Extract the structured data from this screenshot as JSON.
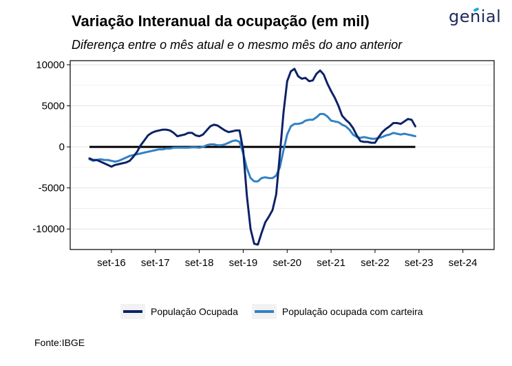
{
  "logo": {
    "text": "genial"
  },
  "chart_data": {
    "type": "line",
    "title": "Variação Interanual da ocupação (em mil)",
    "subtitle": "Diferença entre o mês atual e o mesmo mês do ano anterior",
    "xlabel": "",
    "ylabel": "",
    "ylim": [
      -12500,
      10500
    ],
    "yticks": [
      10000,
      5000,
      0,
      -5000,
      -10000
    ],
    "ytick_labels": [
      "10000",
      "5000",
      "0",
      "-5000",
      "-10000"
    ],
    "xticks": [
      "set-16",
      "set-17",
      "set-18",
      "set-19",
      "set-20",
      "set-21",
      "set-22",
      "set-23",
      "set-24"
    ],
    "x_start": "mar-16",
    "x_end": "nov-24",
    "grid": true,
    "legend_position": "bottom",
    "zero_line": true,
    "series": [
      {
        "name": "População Ocupada",
        "color": "#0c2266",
        "values": [
          -1400,
          -1600,
          -1600,
          -1800,
          -2000,
          -2200,
          -2400,
          -2200,
          -2100,
          -2000,
          -1900,
          -1700,
          -1200,
          -600,
          200,
          800,
          1400,
          1700,
          1900,
          2000,
          2100,
          2100,
          2000,
          1700,
          1300,
          1400,
          1500,
          1700,
          1700,
          1400,
          1300,
          1500,
          2000,
          2500,
          2700,
          2600,
          2300,
          2000,
          1800,
          1900,
          2000,
          2000,
          -400,
          -6000,
          -10000,
          -11800,
          -11900,
          -10500,
          -9200,
          -8500,
          -7700,
          -5800,
          -1000,
          4200,
          8000,
          9200,
          9500,
          8600,
          8300,
          8400,
          8000,
          8100,
          8900,
          9300,
          8800,
          7700,
          6800,
          6000,
          5000,
          3800,
          3300,
          2900,
          2300,
          1400,
          700,
          600,
          600,
          500,
          500,
          1200,
          1800,
          2200,
          2500,
          2900,
          2900,
          2800,
          3100,
          3400,
          3300,
          2500
        ]
      },
      {
        "name": "População ocupada com carteira",
        "color": "#3281c4",
        "values": [
          -1500,
          -1700,
          -1600,
          -1500,
          -1600,
          -1600,
          -1700,
          -1800,
          -1700,
          -1500,
          -1300,
          -1100,
          -1000,
          -900,
          -800,
          -700,
          -600,
          -500,
          -400,
          -300,
          -300,
          -200,
          -200,
          -100,
          -100,
          -100,
          -100,
          -100,
          -50,
          -50,
          -100,
          0,
          200,
          300,
          300,
          200,
          200,
          300,
          500,
          700,
          800,
          600,
          -800,
          -2600,
          -3800,
          -4200,
          -4200,
          -3800,
          -3700,
          -3800,
          -3800,
          -3500,
          -2500,
          -400,
          1500,
          2500,
          2800,
          2800,
          2900,
          3200,
          3300,
          3300,
          3600,
          4000,
          4000,
          3700,
          3200,
          3100,
          3000,
          2700,
          2500,
          2100,
          1500,
          1200,
          1100,
          1200,
          1100,
          1000,
          1000,
          1100,
          1200,
          1400,
          1500,
          1700,
          1600,
          1500,
          1600,
          1500,
          1400,
          1300
        ]
      }
    ]
  },
  "footer": {
    "source": "Fonte:IBGE"
  }
}
